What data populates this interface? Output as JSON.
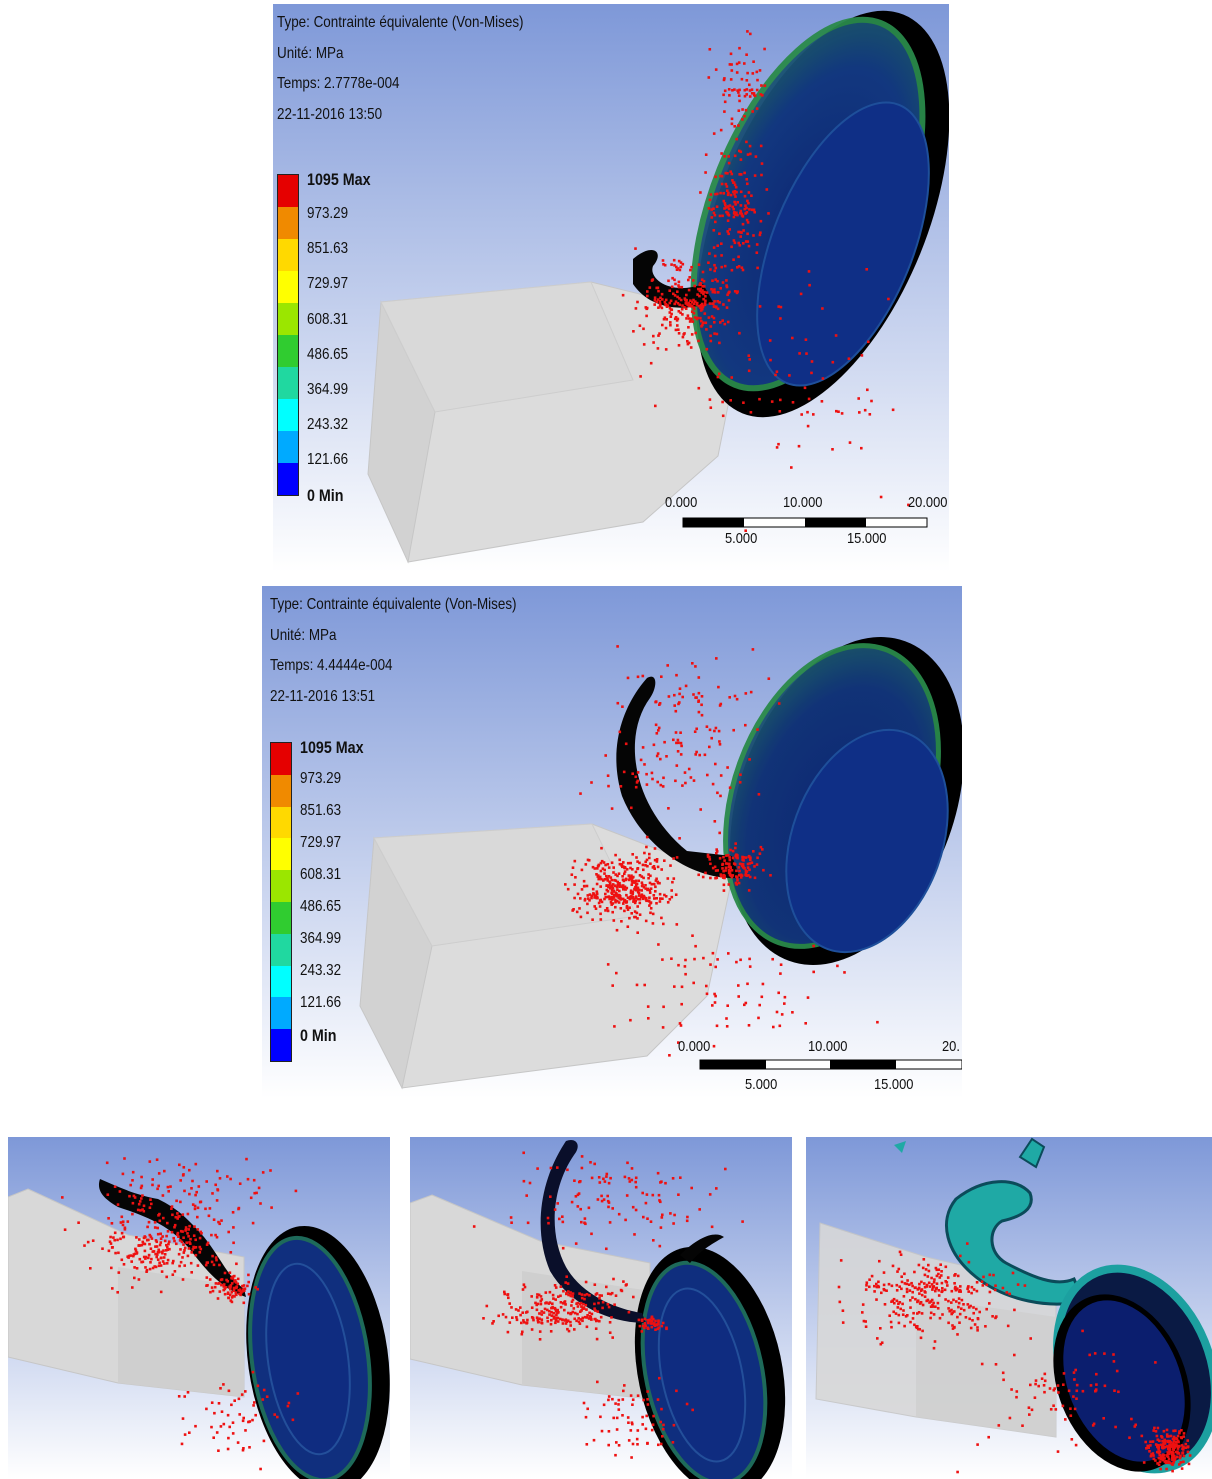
{
  "panels": [
    {
      "type_label": "Type: Contrainte équivalente (Von-Mises)",
      "unit_label": "Unité: MPa",
      "time_label": "Temps: 2.7778e-004",
      "date_label": "22-11-2016 13:50",
      "legend": [
        "1095 Max",
        "973.29",
        "851.63",
        "729.97",
        "608.31",
        "486.65",
        "364.99",
        "243.32",
        "121.66",
        "0 Min"
      ],
      "scale_top": [
        "0.000",
        "10.000",
        "20.000"
      ],
      "scale_bottom": [
        "5.000",
        "15.000"
      ]
    },
    {
      "type_label": "Type: Contrainte équivalente (Von-Mises)",
      "unit_label": "Unité: MPa",
      "time_label": "Temps: 4.4444e-004",
      "date_label": "22-11-2016 13:51",
      "legend": [
        "1095 Max",
        "973.29",
        "851.63",
        "729.97",
        "608.31",
        "486.65",
        "364.99",
        "243.32",
        "121.66",
        "0 Min"
      ],
      "scale_top": [
        "0.000",
        "10.000",
        "20."
      ],
      "scale_bottom": [
        "5.000",
        "15.000"
      ]
    }
  ],
  "legend_colors": [
    "#e50000",
    "#f08a00",
    "#ffd900",
    "#ffff00",
    "#9be600",
    "#30cc30",
    "#20d8a0",
    "#00ffff",
    "#00aaff",
    "#0000ff"
  ],
  "particle_color": "#ee1111",
  "block_color": "#dcdcdc"
}
